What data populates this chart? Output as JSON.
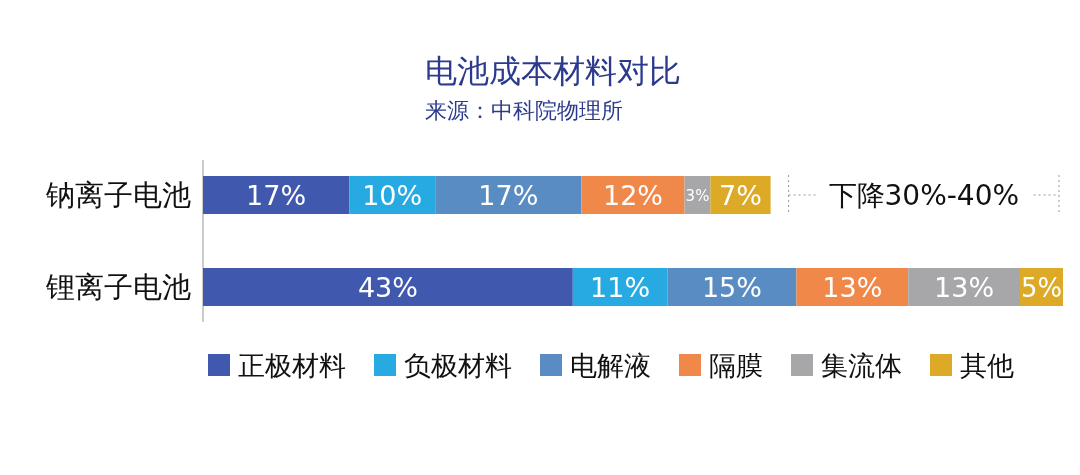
{
  "chart_data": {
    "type": "bar",
    "orientation": "horizontal",
    "stacked": true,
    "title": "电池成本材料对比",
    "subtitle": "来源：中科院物理所",
    "categories": [
      "钠离子电池",
      "锂离子电池"
    ],
    "series": [
      {
        "name": "正极材料",
        "color": "#4059ae",
        "values": [
          17,
          43
        ],
        "value_labels": [
          "17%",
          "43%"
        ]
      },
      {
        "name": "负极材料",
        "color": "#27aae1",
        "values": [
          10,
          11
        ],
        "value_labels": [
          "10%",
          "11%"
        ]
      },
      {
        "name": "电解液",
        "color": "#5a8cc4",
        "values": [
          17,
          15
        ],
        "value_labels": [
          "17%",
          "15%"
        ]
      },
      {
        "name": "隔膜",
        "color": "#f0884a",
        "values": [
          12,
          13
        ],
        "value_labels": [
          "12%",
          "13%"
        ]
      },
      {
        "name": "集流体",
        "color": "#a7a7aa",
        "values": [
          3,
          13
        ],
        "value_labels": [
          "3%",
          "13%"
        ]
      },
      {
        "name": "其他",
        "color": "#dcaa26",
        "values": [
          7,
          5
        ],
        "value_labels": [
          "7%",
          "5%"
        ]
      }
    ],
    "annotations": [
      "下降30%-40%"
    ],
    "legend": "bottom"
  }
}
